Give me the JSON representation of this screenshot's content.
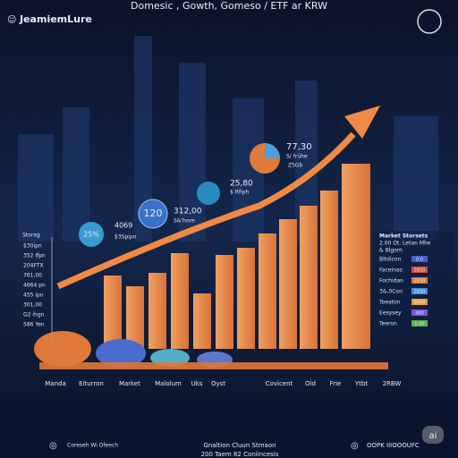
{
  "header": {
    "title": "Domesic , Gowth, Gomeso / ETF ar KRW",
    "brand": "JeamiemLure"
  },
  "bubbles": [
    {
      "label": "25%",
      "value": "4069",
      "note": "$3Spipn"
    },
    {
      "label": "120",
      "value": "312,00",
      "note": "S&'hore"
    },
    {
      "value": "25,80",
      "note": "$ Rfiph"
    },
    {
      "value": "77,30",
      "note": "S/ frühe",
      "extra": "Z5Gb"
    }
  ],
  "axis": {
    "title": "Storag",
    "labels": [
      "$30ipn",
      "352 Ifpn",
      "204FTX",
      "761,00",
      "4664 pn",
      "455 ipn",
      "301,00",
      "G2 ihgn",
      "586 Yen"
    ]
  },
  "categories": [
    "Manda",
    "Eiturron",
    "Market",
    "Malolum",
    "Uks",
    "Oyst",
    "Covicent",
    "Old",
    "Frie",
    "Ytbt",
    "2RBW"
  ],
  "legend": {
    "title": "Market Storsets",
    "subtitle": "2.00 Ot. Letan Mhe",
    "note": "& Blgom",
    "rows": [
      [
        "Bitdicon",
        "0.0"
      ],
      [
        "Faceinas",
        "2850"
      ],
      [
        "Fochidan",
        "2850"
      ],
      [
        "3&.0Con",
        "2850"
      ],
      [
        "Toeaton",
        "2650"
      ],
      [
        "Eesysey",
        "400"
      ],
      [
        "Teeron",
        "1.00"
      ]
    ]
  },
  "footer": {
    "left": "Coreseh Wi Dfeech",
    "center": "Gnaltion Cluun Stmaon",
    "center_sub": "200 Taem 82 Coniincesis",
    "right": "OOPK IIIOOOUFC",
    "badge": "ai"
  }
}
